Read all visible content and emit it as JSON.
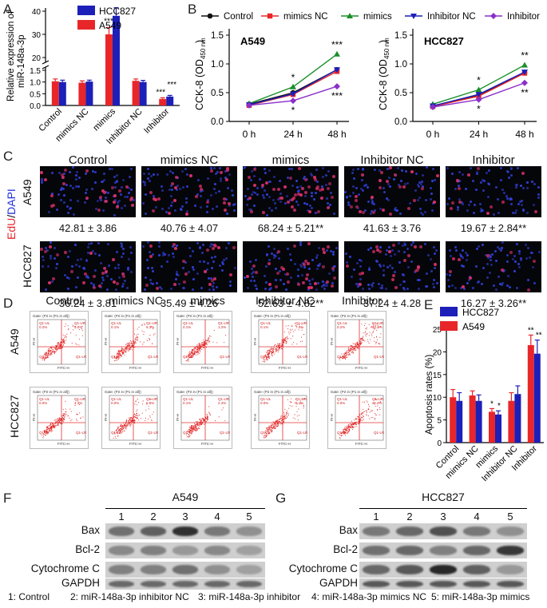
{
  "panels": {
    "A": "A",
    "B": "B",
    "C": "C",
    "D": "D",
    "E": "E",
    "F": "F",
    "G": "G"
  },
  "chart_data": [
    {
      "panel": "A",
      "type": "bar",
      "ylabel_line1": "Relative expression of",
      "ylabel_line2": "miR-148a-3p",
      "categories": [
        "Control",
        "mimics NC",
        "mimics",
        "Inhibitor NC",
        "Inhibitor"
      ],
      "series": [
        {
          "name": "HCC827",
          "color": "#1c1fb8",
          "values": [
            1.0,
            1.02,
            38.0,
            1.0,
            0.38
          ],
          "errors": [
            0.08,
            0.06,
            3.5,
            0.07,
            0.05
          ]
        },
        {
          "name": "A549",
          "color": "#e8262a",
          "values": [
            1.03,
            0.97,
            30.0,
            1.05,
            0.28
          ],
          "errors": [
            0.1,
            0.08,
            3.0,
            0.08,
            0.05
          ]
        }
      ],
      "yticks_low": [
        "0.0",
        "0.5",
        "1.0",
        "1.5"
      ],
      "yticks_high": [
        "20",
        "30",
        "40"
      ],
      "annotations": [
        "***",
        "***",
        "***",
        "***"
      ],
      "broken_axis": true
    },
    {
      "panel": "B",
      "type": "line",
      "legend": [
        "Control",
        "mimics NC",
        "mimics",
        "Inhibitor NC",
        "Inhibitor"
      ],
      "colors": [
        "#111111",
        "#e8262a",
        "#1a8f2a",
        "#1c1fb8",
        "#8b2fc9"
      ],
      "ylabel": "CCK-8 (OD",
      "ylabel_sub": "450 nm",
      "x": [
        "0 h",
        "24 h",
        "48 h"
      ],
      "yticks": [
        "0.0",
        "0.5",
        "1.0",
        "1.5"
      ],
      "ylim": [
        0,
        1.5
      ],
      "subplots": [
        {
          "title": "A549",
          "series": [
            {
              "name": "Control",
              "values": [
                0.3,
                0.5,
                0.9
              ]
            },
            {
              "name": "mimics NC",
              "values": [
                0.28,
                0.47,
                0.87
              ]
            },
            {
              "name": "mimics",
              "values": [
                0.31,
                0.6,
                1.17
              ]
            },
            {
              "name": "Inhibitor NC",
              "values": [
                0.29,
                0.48,
                0.9
              ]
            },
            {
              "name": "Inhibitor",
              "values": [
                0.28,
                0.36,
                0.61
              ]
            }
          ],
          "annotations": [
            {
              "text": "*",
              "x": 1,
              "pos": "above"
            },
            {
              "text": "*",
              "x": 1,
              "pos": "below"
            },
            {
              "text": "***",
              "x": 2,
              "pos": "above"
            },
            {
              "text": "***",
              "x": 2,
              "pos": "below"
            }
          ]
        },
        {
          "title": "HCC827",
          "series": [
            {
              "name": "Control",
              "values": [
                0.27,
                0.46,
                0.85
              ]
            },
            {
              "name": "mimics NC",
              "values": [
                0.26,
                0.44,
                0.84
              ]
            },
            {
              "name": "mimics",
              "values": [
                0.3,
                0.55,
                0.98
              ]
            },
            {
              "name": "Inhibitor NC",
              "values": [
                0.27,
                0.47,
                0.86
              ]
            },
            {
              "name": "Inhibitor",
              "values": [
                0.25,
                0.38,
                0.67
              ]
            }
          ],
          "annotations": [
            {
              "text": "*",
              "x": 1,
              "pos": "above"
            },
            {
              "text": "*",
              "x": 1,
              "pos": "below"
            },
            {
              "text": "**",
              "x": 2,
              "pos": "above"
            },
            {
              "text": "**",
              "x": 2,
              "pos": "below"
            }
          ]
        }
      ]
    },
    {
      "panel": "E",
      "type": "bar",
      "ylabel": "Apoptosis rates (%)",
      "categories": [
        "Control",
        "mimics NC",
        "mimics",
        "Inhibitor NC",
        "Inhibitor"
      ],
      "series": [
        {
          "name": "HCC827",
          "color": "#1c1fb8",
          "values": [
            9.2,
            9.2,
            6.2,
            10.7,
            19.6
          ],
          "errors": [
            1.8,
            1.3,
            0.8,
            1.8,
            3.0
          ]
        },
        {
          "name": "A549",
          "color": "#e8262a",
          "values": [
            10.0,
            10.4,
            6.8,
            9.2,
            21.5
          ],
          "errors": [
            1.7,
            1.0,
            0.7,
            1.8,
            2.2
          ]
        }
      ],
      "yticks": [
        "0",
        "5",
        "10",
        "15",
        "20",
        "25"
      ],
      "ylim": [
        0,
        25
      ],
      "annotations": [
        "*",
        "*",
        "**",
        "**"
      ]
    }
  ],
  "panel_c": {
    "conditions": [
      "Control",
      "mimics NC",
      "mimics",
      "Inhibitor NC",
      "Inhibitor"
    ],
    "stain_red": "EdU",
    "stain_sep": "/",
    "stain_blue": "DAPI",
    "rows": [
      {
        "label": "A549",
        "values": [
          "42.81 ± 3.86",
          "40.76 ± 4.07",
          "68.24 ± 5.21**",
          "41.63 ± 3.76",
          "19.67 ± 2.84**"
        ],
        "red": [
          0.43,
          0.41,
          0.68,
          0.42,
          0.2
        ]
      },
      {
        "label": "HCC827",
        "values": [
          "36.24 ± 3.81",
          "35.49 ± 4.26",
          "52.63 ± 4.82**",
          "37.24 ± 4.28",
          "16.27 ± 3.26**"
        ],
        "red": [
          0.36,
          0.35,
          0.53,
          0.37,
          0.16
        ]
      }
    ]
  },
  "panel_d": {
    "conditions": [
      "Control",
      "mimics NC",
      "mimics",
      "Inhibitor NC",
      "Inhibitor"
    ],
    "rows": [
      "A549",
      "HCC827"
    ],
    "gate_text": "Gate: (P2 in (P1 in all))",
    "axis_x": "FITC-H",
    "axis_y": "PI-H",
    "q_ul": "Q1-UL",
    "q_ur": "Q1-UR",
    "q_ll": "Q1-LL",
    "q_lr": "Q1-LR",
    "ur_values": [
      [
        "5.0%",
        "6.3%",
        "1.2%",
        "7.0%",
        "10.3%"
      ],
      [
        "4.3%",
        "5.8%",
        "2.4%",
        "8.1%",
        "11.4%"
      ]
    ],
    "ul_values": [
      [
        "0.2%",
        "0.1%",
        "0.1%",
        "0.1%",
        "0.2%"
      ],
      [
        "0.0%",
        "0.0%",
        "0.1%",
        "0.0%",
        "0.0%"
      ]
    ]
  },
  "panel_f": {
    "title": "A549",
    "lanes": [
      "1",
      "2",
      "3",
      "4",
      "5"
    ],
    "proteins": [
      "Bax",
      "Bcl-2",
      "Cytochrome C",
      "GAPDH"
    ],
    "intensity": [
      [
        0.55,
        0.65,
        0.95,
        0.5,
        0.35
      ],
      [
        0.4,
        0.45,
        0.3,
        0.4,
        0.25
      ],
      [
        0.45,
        0.45,
        0.55,
        0.35,
        0.25
      ],
      [
        0.6,
        0.6,
        0.6,
        0.6,
        0.6
      ]
    ]
  },
  "panel_g": {
    "title": "HCC827",
    "lanes": [
      "1",
      "2",
      "3",
      "4",
      "5"
    ],
    "proteins": [
      "Bax",
      "Bcl-2",
      "Cytochrome C",
      "GAPDH"
    ],
    "intensity": [
      [
        0.5,
        0.6,
        0.75,
        0.5,
        0.35
      ],
      [
        0.55,
        0.6,
        0.45,
        0.6,
        0.9
      ],
      [
        0.6,
        0.7,
        1.0,
        0.65,
        0.3
      ],
      [
        0.7,
        0.7,
        0.7,
        0.7,
        0.7
      ]
    ]
  },
  "footer": {
    "items": [
      "1: Control",
      "2: miR-148a-3p inhibitor NC",
      "3: miR-148a-3p inhibitor",
      "4: miR-148a-3p mimics NC",
      "5: miR-148a-3p mimics"
    ]
  }
}
